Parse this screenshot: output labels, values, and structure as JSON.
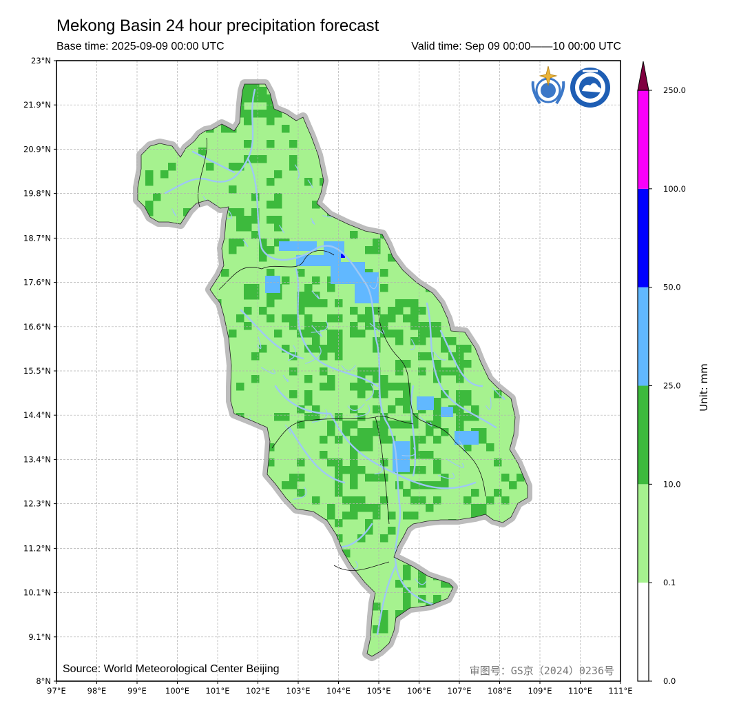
{
  "title": "Mekong Basin 24 hour precipitation forecast",
  "base_time": "Base time: 2025-09-09 00:00 UTC",
  "valid_time": "Valid time: Sep 09 00:00——10 00:00 UTC",
  "source": "Source: World Meteorological Center Beijing",
  "review_number": "审图号：GS京（2024）0236号",
  "map": {
    "lon_range": [
      97,
      111
    ],
    "lat_range": [
      8,
      23
    ],
    "lon_ticks": [
      "97°E",
      "98°E",
      "99°E",
      "100°E",
      "101°E",
      "102°E",
      "103°E",
      "104°E",
      "105°E",
      "106°E",
      "107°E",
      "108°E",
      "109°E",
      "110°E",
      "111°E"
    ],
    "lon_values": [
      97,
      98,
      99,
      100,
      101,
      102,
      103,
      104,
      105,
      106,
      107,
      108,
      109,
      110,
      111
    ],
    "lat_ticks": [
      "8°N",
      "9.1°N",
      "10.1°N",
      "11.2°N",
      "12.3°N",
      "13.4°N",
      "14.4°N",
      "15.5°N",
      "16.6°N",
      "17.6°N",
      "18.7°N",
      "19.8°N",
      "20.9°N",
      "21.9°N",
      "23°N"
    ],
    "lat_values": [
      8,
      9.07,
      10.14,
      11.21,
      12.29,
      13.36,
      14.43,
      15.5,
      16.57,
      17.64,
      18.71,
      19.79,
      20.86,
      21.93,
      23
    ],
    "grid": true,
    "logos": [
      "wmo-emblem-icon",
      "cma-emblem-icon"
    ]
  },
  "colorbar": {
    "unit_label": "Unit: mm",
    "labels": [
      "0.0",
      "0.1",
      "10.0",
      "25.0",
      "50.0",
      "100.0",
      "250.0"
    ],
    "colors": [
      "#ffffff",
      "#a6f28f",
      "#3dba3d",
      "#61b8ff",
      "#0000ff",
      "#fa00fa"
    ],
    "extend_color": "#800040"
  },
  "colors": {
    "light_rain": "#a6f28f",
    "moderate_rain": "#3dba3d",
    "heavy_rain": "#61b8ff",
    "very_heavy_rain": "#0000ff",
    "river": "#9ec8f5",
    "basin_halo": "#bdbdbd"
  }
}
